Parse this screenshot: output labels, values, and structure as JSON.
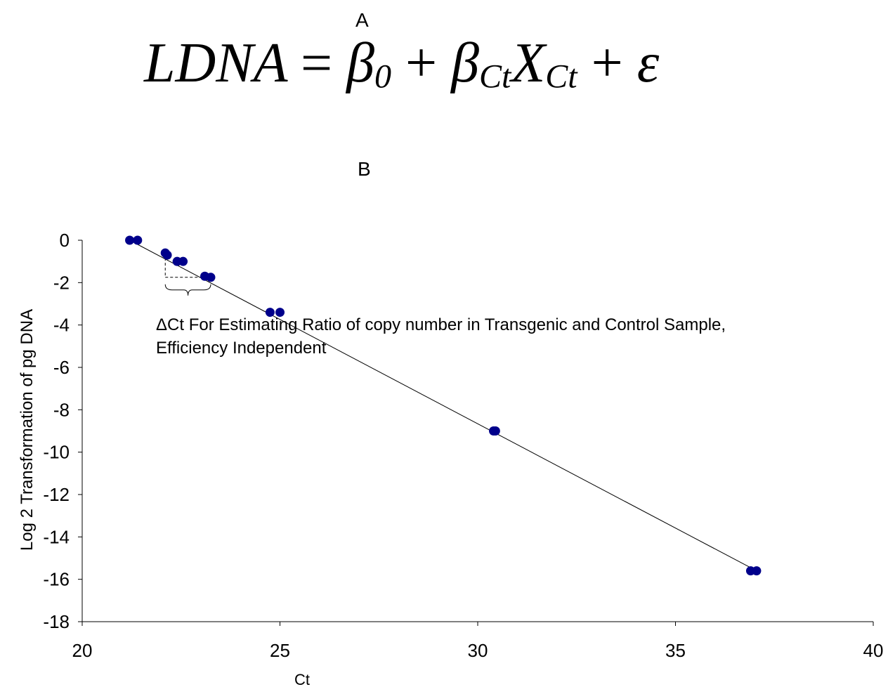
{
  "figure": {
    "panel_a_label": "A",
    "panel_b_label": "B",
    "equation": {
      "lhs": "LDNA",
      "equals": "=",
      "beta0": "β",
      "beta0_sub": "0",
      "plus1": "+",
      "betaCt": "β",
      "betaCt_sub": "Ct",
      "x": "X",
      "x_sub": "Ct",
      "plus2": "+",
      "epsilon": "ε"
    }
  },
  "chart_data": {
    "type": "scatter",
    "xlabel": "Ct",
    "ylabel": "Log 2 Transformation of pg DNA",
    "xlim": [
      20,
      40
    ],
    "ylim": [
      -18,
      0
    ],
    "xticks": [
      20,
      25,
      30,
      35,
      40
    ],
    "yticks": [
      0,
      -2,
      -4,
      -6,
      -8,
      -10,
      -12,
      -14,
      -16,
      -18
    ],
    "grid": false,
    "marker_color": "#00008B",
    "series": [
      {
        "points": [
          [
            21.2,
            0
          ],
          [
            21.4,
            0
          ],
          [
            22.1,
            -0.6
          ],
          [
            22.15,
            -0.7
          ],
          [
            22.4,
            -1.0
          ],
          [
            22.55,
            -1.0
          ],
          [
            23.1,
            -1.7
          ],
          [
            23.25,
            -1.75
          ],
          [
            24.75,
            -3.4
          ],
          [
            25.0,
            -3.4
          ],
          [
            30.4,
            -9.0
          ],
          [
            30.45,
            -9.0
          ],
          [
            36.9,
            -15.6
          ],
          [
            37.05,
            -15.6
          ]
        ]
      }
    ],
    "trendline": {
      "x": [
        21.2,
        37.05
      ],
      "y": [
        0,
        -15.6
      ]
    },
    "annotation": {
      "line1": "ΔCt For Estimating Ratio of copy number in Transgenic and Control Sample,",
      "line2": "Efficiency Independent",
      "delta_from": [
        22.1,
        -0.6
      ],
      "delta_to": [
        23.25,
        -1.75
      ]
    }
  }
}
